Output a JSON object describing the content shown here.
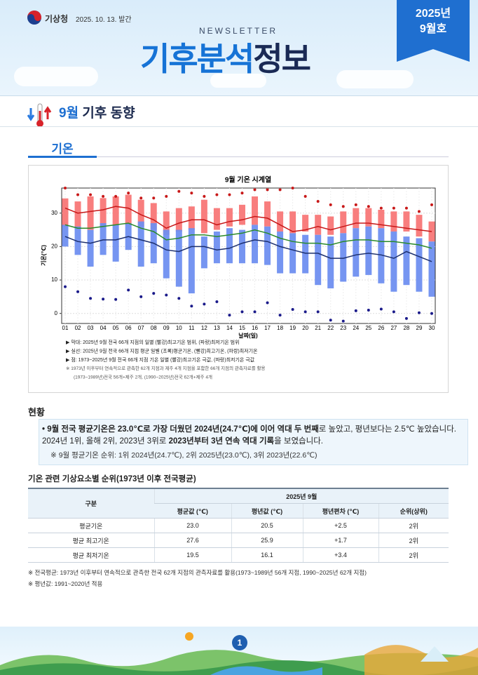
{
  "header": {
    "agency": "기상청",
    "date": "2025. 10. 13. 발간",
    "newsletter": "NEWSLETTER",
    "title_blue": "기후분석",
    "title_dark": "정보",
    "issue_year": "2025년",
    "issue_month": "9월호"
  },
  "section": {
    "month": "9월",
    "title": "기후 동향",
    "tab": "기온"
  },
  "chart_data": {
    "type": "range-line",
    "title": "9월 기온 시계열",
    "x_label": "날짜(일)",
    "y_label": "기온(℃)",
    "categories": [
      "01",
      "02",
      "03",
      "04",
      "05",
      "06",
      "07",
      "08",
      "09",
      "10",
      "11",
      "12",
      "13",
      "14",
      "15",
      "16",
      "17",
      "18",
      "19",
      "20",
      "21",
      "22",
      "23",
      "24",
      "25",
      "26",
      "27",
      "28",
      "29",
      "30"
    ],
    "ylim": [
      -3,
      37.5
    ],
    "yticks": [
      0,
      10,
      20,
      30
    ],
    "grid": true,
    "bars": [
      {
        "color": "#f87777",
        "low": [
          26,
          25.5,
          25,
          26,
          26.5,
          26.5,
          26,
          25,
          23.5,
          24.5,
          25,
          24,
          25,
          26,
          26.5,
          26.5,
          26,
          24.5,
          24,
          24.5,
          23.5,
          23.5,
          24,
          25.5,
          26,
          25.5,
          24.5,
          24.5,
          23,
          21.5
        ],
        "high": [
          34.4,
          33.5,
          35,
          34.5,
          35,
          35.5,
          34,
          33,
          30.5,
          31.5,
          32,
          34,
          31.5,
          31.5,
          32.5,
          35,
          33.5,
          30.5,
          30.5,
          29.5,
          29.5,
          29,
          30.5,
          31.5,
          31.5,
          31,
          30.5,
          30.5,
          29.5,
          27.5
        ]
      },
      {
        "color": "#6f8ff0",
        "low": [
          20,
          17.5,
          14,
          17.5,
          15.5,
          19,
          14,
          15,
          10.5,
          8,
          6,
          13.5,
          15,
          15,
          15,
          15,
          14.5,
          12,
          12,
          12,
          8.5,
          7.5,
          9.5,
          11,
          11.5,
          9,
          6.5,
          8.5,
          6.5,
          5
        ],
        "high": [
          26.5,
          26,
          25,
          27,
          26.5,
          27,
          27.5,
          27,
          25,
          25,
          25.5,
          23,
          24.5,
          25.5,
          25,
          26.5,
          26,
          24.5,
          24,
          23.5,
          23.5,
          23,
          24,
          25.5,
          26,
          25.5,
          24.5,
          23,
          22.5,
          21.5
        ]
      }
    ],
    "lines": [
      {
        "color": "#c81818",
        "values": [
          31.5,
          30,
          30.5,
          31,
          32,
          31.5,
          29.5,
          28,
          25.5,
          27,
          28,
          28,
          26.5,
          27.5,
          28,
          29,
          28.5,
          26.5,
          24.5,
          25,
          26,
          25,
          26,
          27,
          27,
          26.5,
          26,
          25.5,
          25,
          24.5
        ]
      },
      {
        "color": "#2a8a2a",
        "values": [
          26.5,
          25.5,
          25.5,
          26,
          26.5,
          27,
          25.5,
          24.5,
          22,
          22.5,
          23.5,
          23.5,
          23,
          23.5,
          24,
          25,
          24,
          22.5,
          21.5,
          21,
          21,
          20.5,
          21.5,
          22,
          22,
          21.5,
          21.5,
          21,
          20.5,
          19.5
        ]
      },
      {
        "color": "#1c2f6e",
        "values": [
          23,
          21.5,
          21,
          22,
          22,
          23,
          22,
          21,
          19,
          18.5,
          20,
          20,
          19,
          19.5,
          21,
          22,
          21.5,
          20,
          19,
          18,
          18,
          16.5,
          16.5,
          17.5,
          18,
          17.5,
          16.5,
          18.5,
          17,
          15.5
        ]
      }
    ],
    "dots": [
      {
        "color": "#c81818",
        "values": [
          37.5,
          35.5,
          35.5,
          35,
          35,
          36,
          34.5,
          34.5,
          35,
          36.5,
          36,
          35,
          35.5,
          35.5,
          36,
          37,
          37,
          37,
          37.5,
          35,
          33.5,
          32.5,
          32,
          32.5,
          32,
          31.5,
          31.5,
          31.5,
          30.5,
          32.5
        ]
      },
      {
        "color": "#1a1a8a",
        "values": [
          8,
          6.5,
          4.5,
          4.3,
          4.2,
          7,
          5,
          6,
          5.5,
          4.5,
          2.2,
          2.8,
          3.5,
          -0.5,
          0.5,
          0.5,
          3.2,
          -0.5,
          1.2,
          0.5,
          0.5,
          -2,
          -2.3,
          0.8,
          1,
          1.3,
          0.5,
          -1.5,
          0.2,
          0
        ]
      }
    ],
    "notes": [
      "▶ 막대: 2025년 9월 전국 66개 지점의 일별 (빨강)최고기온 범위, (파랑)최저기온 범위",
      "▶ 실선: 2025년 9월 전국 66개 지점 평균 일별 (초록)평균기온, (빨강)최고기온, (파랑)최저기온",
      "▶ 점: 1973~2025년 9월 전국 66개 지점 기온 일별 (빨강)최고기온 극값, (파랑)최저기온 극값",
      "※ 1973년 이후부터 연속적으로 관측한 62개 지점과 제주 4개 지점을 포함한 66개 지점의 관측자료를 활용",
      "(1973~1989년)전국 56개+제주 2개, (1990~2025년)전국 62개+제주 4개"
    ]
  },
  "status": {
    "title": "현황",
    "bullet": [
      {
        "text": "• 9월 전국 평균기온은 23.0℃로 ",
        "bold": true
      },
      {
        "text": "가장 더웠던 2024년(24.7℃)에 이어 역대 두 번째",
        "bold": true
      },
      {
        "text": "로 높았고, 평년보다는 2.5℃ 높았습니다. 2024년 1위, 올해 2위, 2023년 3위로 ",
        "bold": false
      },
      {
        "text": "2023년부터 3년 연속 역대 기록",
        "bold": true
      },
      {
        "text": "을 보였습니다.",
        "bold": false
      }
    ],
    "note": "※ 9월 평균기온 순위: 1위 2024년(24.7℃), 2위 2025년(23.0℃), 3위 2023년(22.6℃)"
  },
  "table": {
    "title": "기온 관련 기상요소별 순위(1973년 이후 전국평균)",
    "corner": "구분",
    "group": "2025년 9월",
    "columns": [
      "평균값 (℃)",
      "평년값 (℃)",
      "평년편차 (℃)",
      "순위(상위)"
    ],
    "rows": [
      [
        "평균기온",
        "23.0",
        "20.5",
        "+2.5",
        "2위"
      ],
      [
        "평균 최고기온",
        "27.6",
        "25.9",
        "+1.7",
        "2위"
      ],
      [
        "평균 최저기온",
        "19.5",
        "16.1",
        "+3.4",
        "2위"
      ]
    ]
  },
  "footnotes": [
    "※ 전국평균: 1973년 이후부터 연속적으로 관측한 전국 62개 지점의 관측자료를 활용(1973~1989년 56개 지점, 1990~2025년 62개 지점)",
    "※ 평년값: 1991~2020년 적용"
  ],
  "footer": {
    "page": "1"
  }
}
